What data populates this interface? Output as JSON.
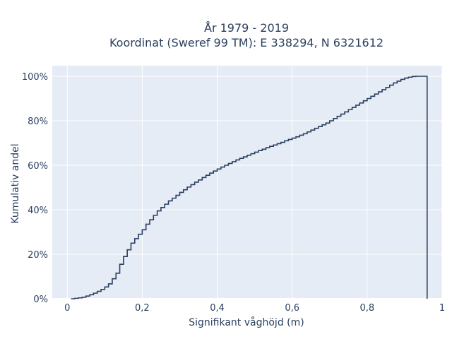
{
  "chart_data": {
    "type": "line",
    "line_shape": "step (histogram-style cumulative distribution)",
    "title_lines": [
      "År 1979 - 2019",
      "Koordinat (Sweref 99 TM): E 338294, N 6321612"
    ],
    "xlabel": "Signifikant våghöjd (m)",
    "ylabel": "Kumulativ andel",
    "xlim": [
      -0.04,
      1.0
    ],
    "ylim": [
      0,
      1.0
    ],
    "x_ticks": [
      0,
      0.2,
      0.4,
      0.6,
      0.8,
      1.0
    ],
    "x_tick_labels": [
      "0",
      "0,2",
      "0,4",
      "0,6",
      "0,8",
      "1"
    ],
    "y_ticks": [
      0,
      0.2,
      0.4,
      0.6,
      0.8,
      1.0
    ],
    "y_tick_labels": [
      "0%",
      "20%",
      "40%",
      "60%",
      "80%",
      "100%"
    ],
    "grid": true,
    "colors": {
      "plot_bg": "#e5ecf6",
      "grid": "#ffffff",
      "line": "#2a3f5f",
      "text": "#2a3f5f"
    },
    "series": [
      {
        "x": [
          0.01,
          0.02,
          0.03,
          0.04,
          0.05,
          0.06,
          0.07,
          0.08,
          0.09,
          0.1,
          0.11,
          0.12,
          0.13,
          0.14,
          0.15,
          0.16,
          0.17,
          0.18,
          0.19,
          0.2,
          0.21,
          0.22,
          0.23,
          0.24,
          0.25,
          0.26,
          0.27,
          0.28,
          0.29,
          0.3,
          0.31,
          0.32,
          0.33,
          0.34,
          0.35,
          0.36,
          0.37,
          0.38,
          0.39,
          0.4,
          0.41,
          0.42,
          0.43,
          0.44,
          0.45,
          0.46,
          0.47,
          0.48,
          0.49,
          0.5,
          0.51,
          0.52,
          0.53,
          0.54,
          0.55,
          0.56,
          0.57,
          0.58,
          0.59,
          0.6,
          0.61,
          0.62,
          0.63,
          0.64,
          0.65,
          0.66,
          0.67,
          0.68,
          0.69,
          0.7,
          0.71,
          0.72,
          0.73,
          0.74,
          0.75,
          0.76,
          0.77,
          0.78,
          0.79,
          0.8,
          0.81,
          0.82,
          0.83,
          0.84,
          0.85,
          0.86,
          0.87,
          0.88,
          0.89,
          0.9,
          0.91,
          0.92,
          0.93,
          0.94,
          0.95,
          0.96
        ],
        "y": [
          0.0,
          0.002,
          0.004,
          0.007,
          0.012,
          0.018,
          0.025,
          0.033,
          0.042,
          0.053,
          0.067,
          0.09,
          0.115,
          0.155,
          0.19,
          0.22,
          0.25,
          0.27,
          0.29,
          0.31,
          0.335,
          0.355,
          0.375,
          0.395,
          0.41,
          0.425,
          0.44,
          0.452,
          0.465,
          0.478,
          0.49,
          0.502,
          0.513,
          0.524,
          0.534,
          0.545,
          0.555,
          0.565,
          0.574,
          0.583,
          0.592,
          0.6,
          0.608,
          0.616,
          0.624,
          0.631,
          0.638,
          0.645,
          0.652,
          0.659,
          0.666,
          0.672,
          0.679,
          0.685,
          0.691,
          0.697,
          0.703,
          0.71,
          0.716,
          0.722,
          0.728,
          0.735,
          0.742,
          0.75,
          0.758,
          0.766,
          0.774,
          0.782,
          0.79,
          0.8,
          0.81,
          0.82,
          0.83,
          0.84,
          0.85,
          0.86,
          0.87,
          0.88,
          0.89,
          0.9,
          0.91,
          0.92,
          0.93,
          0.94,
          0.95,
          0.96,
          0.97,
          0.978,
          0.986,
          0.992,
          0.996,
          0.999,
          1.0,
          1.0,
          1.0,
          0.0
        ]
      }
    ]
  }
}
